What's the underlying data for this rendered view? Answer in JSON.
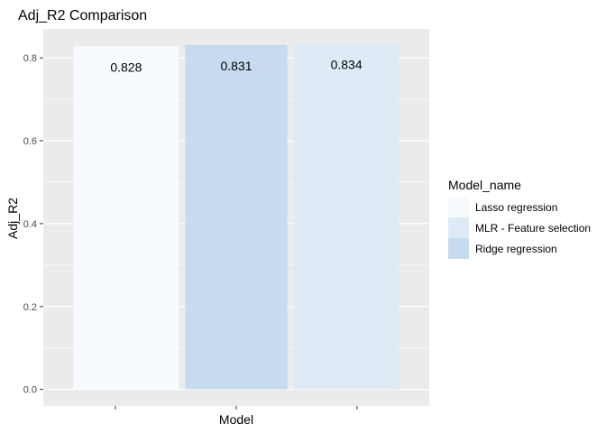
{
  "chart_data": {
    "type": "bar",
    "title": "Adj_R2 Comparison",
    "xlabel": "Model",
    "ylabel": "Adj_R2",
    "categories": [
      "",
      "",
      ""
    ],
    "series": [
      {
        "name": "Lasso regression",
        "value": 0.828,
        "label": "0.828",
        "color": "#F7FBFF"
      },
      {
        "name": "Ridge regression",
        "value": 0.831,
        "label": "0.831",
        "color": "#C6DBEF"
      },
      {
        "name": "MLR - Feature selection",
        "value": 0.834,
        "label": "0.834",
        "color": "#DEEBF7"
      }
    ],
    "ylim": [
      -0.04,
      0.87
    ],
    "yticks": [
      0.0,
      0.2,
      0.4,
      0.6,
      0.8
    ],
    "ytick_labels": [
      "0.0",
      "0.2",
      "0.4",
      "0.6",
      "0.8"
    ],
    "grid": true,
    "panel_background": "#EBEBEB",
    "legend": {
      "title": "Model_name",
      "position": "right",
      "items": [
        {
          "label": "Lasso regression",
          "color": "#F7FBFF"
        },
        {
          "label": "MLR - Feature selection",
          "color": "#DEEBF7"
        },
        {
          "label": "Ridge regression",
          "color": "#C6DBEF"
        }
      ]
    }
  }
}
